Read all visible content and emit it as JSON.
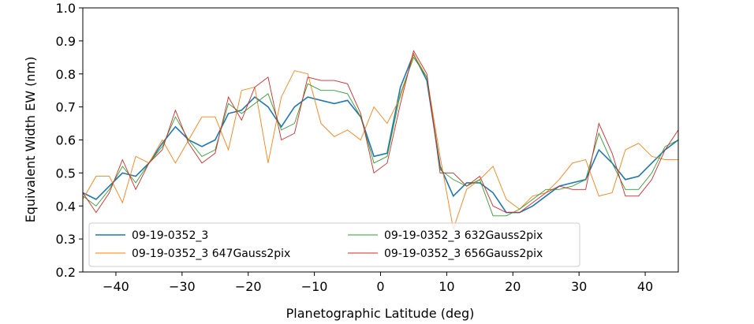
{
  "chart_data": {
    "type": "line",
    "xlabel": "Planetographic Latitude (deg)",
    "ylabel": "Equivalent Width EW (nm)",
    "x": [
      -45,
      -43,
      -41,
      -39,
      -37,
      -35,
      -33,
      -31,
      -29,
      -27,
      -25,
      -23,
      -21,
      -19,
      -17,
      -15,
      -13,
      -11,
      -9,
      -7,
      -5,
      -3,
      -1,
      1,
      3,
      5,
      7,
      9,
      11,
      13,
      15,
      17,
      19,
      21,
      23,
      25,
      27,
      29,
      31,
      33,
      35,
      37,
      39,
      41,
      43,
      45
    ],
    "series": [
      {
        "name": "09-19-0352_3",
        "color": "#1f77b4",
        "values": [
          0.44,
          0.42,
          0.46,
          0.5,
          0.49,
          0.53,
          0.59,
          0.64,
          0.6,
          0.58,
          0.6,
          0.68,
          0.69,
          0.73,
          0.7,
          0.64,
          0.7,
          0.73,
          0.72,
          0.71,
          0.72,
          0.67,
          0.55,
          0.56,
          0.76,
          0.86,
          0.78,
          0.52,
          0.43,
          0.47,
          0.47,
          0.44,
          0.38,
          0.38,
          0.4,
          0.43,
          0.46,
          0.47,
          0.48,
          0.57,
          0.53,
          0.48,
          0.49,
          0.53,
          0.57,
          0.6
        ]
      },
      {
        "name": "09-19-0352_3 647Gauss2pix",
        "color": "#ff7f0e",
        "values": [
          0.42,
          0.49,
          0.49,
          0.41,
          0.55,
          0.53,
          0.6,
          0.53,
          0.6,
          0.67,
          0.67,
          0.57,
          0.75,
          0.76,
          0.53,
          0.73,
          0.81,
          0.8,
          0.65,
          0.61,
          0.63,
          0.6,
          0.7,
          0.65,
          0.73,
          0.86,
          0.79,
          0.55,
          0.33,
          0.45,
          0.48,
          0.52,
          0.42,
          0.39,
          0.43,
          0.44,
          0.48,
          0.53,
          0.54,
          0.43,
          0.44,
          0.57,
          0.59,
          0.55,
          0.54,
          0.54
        ]
      },
      {
        "name": "09-19-0352_3 632Gauss2pix",
        "color": "#2ca02c",
        "values": [
          0.43,
          0.4,
          0.45,
          0.52,
          0.47,
          0.53,
          0.58,
          0.67,
          0.6,
          0.55,
          0.57,
          0.71,
          0.68,
          0.71,
          0.74,
          0.63,
          0.65,
          0.77,
          0.75,
          0.75,
          0.74,
          0.67,
          0.53,
          0.55,
          0.74,
          0.85,
          0.79,
          0.51,
          0.48,
          0.46,
          0.48,
          0.37,
          0.37,
          0.39,
          0.42,
          0.45,
          0.45,
          0.46,
          0.48,
          0.62,
          0.53,
          0.45,
          0.45,
          0.5,
          0.58,
          0.6
        ]
      },
      {
        "name": "09-19-0352_3 656Gauss2pix",
        "color": "#d62728",
        "values": [
          0.44,
          0.38,
          0.44,
          0.54,
          0.45,
          0.53,
          0.57,
          0.69,
          0.59,
          0.53,
          0.56,
          0.73,
          0.66,
          0.76,
          0.79,
          0.6,
          0.62,
          0.79,
          0.78,
          0.78,
          0.77,
          0.68,
          0.5,
          0.53,
          0.71,
          0.87,
          0.8,
          0.5,
          0.5,
          0.46,
          0.49,
          0.4,
          0.38,
          0.38,
          0.41,
          0.44,
          0.46,
          0.45,
          0.45,
          0.65,
          0.56,
          0.43,
          0.43,
          0.48,
          0.57,
          0.63
        ]
      }
    ],
    "xlim": [
      -45,
      45
    ],
    "xticks": [
      {
        "value": -40,
        "label": "−40"
      },
      {
        "value": -30,
        "label": "−30"
      },
      {
        "value": -20,
        "label": "−20"
      },
      {
        "value": -10,
        "label": "−10"
      },
      0,
      10,
      20,
      30,
      40
    ],
    "ylim": [
      0.2,
      1.0
    ],
    "yticks": [
      0.2,
      0.3,
      0.4,
      0.5,
      0.6,
      0.7,
      0.8,
      0.9,
      {
        "value": 1.0,
        "label": "1.0"
      }
    ],
    "legend": "lower left"
  }
}
